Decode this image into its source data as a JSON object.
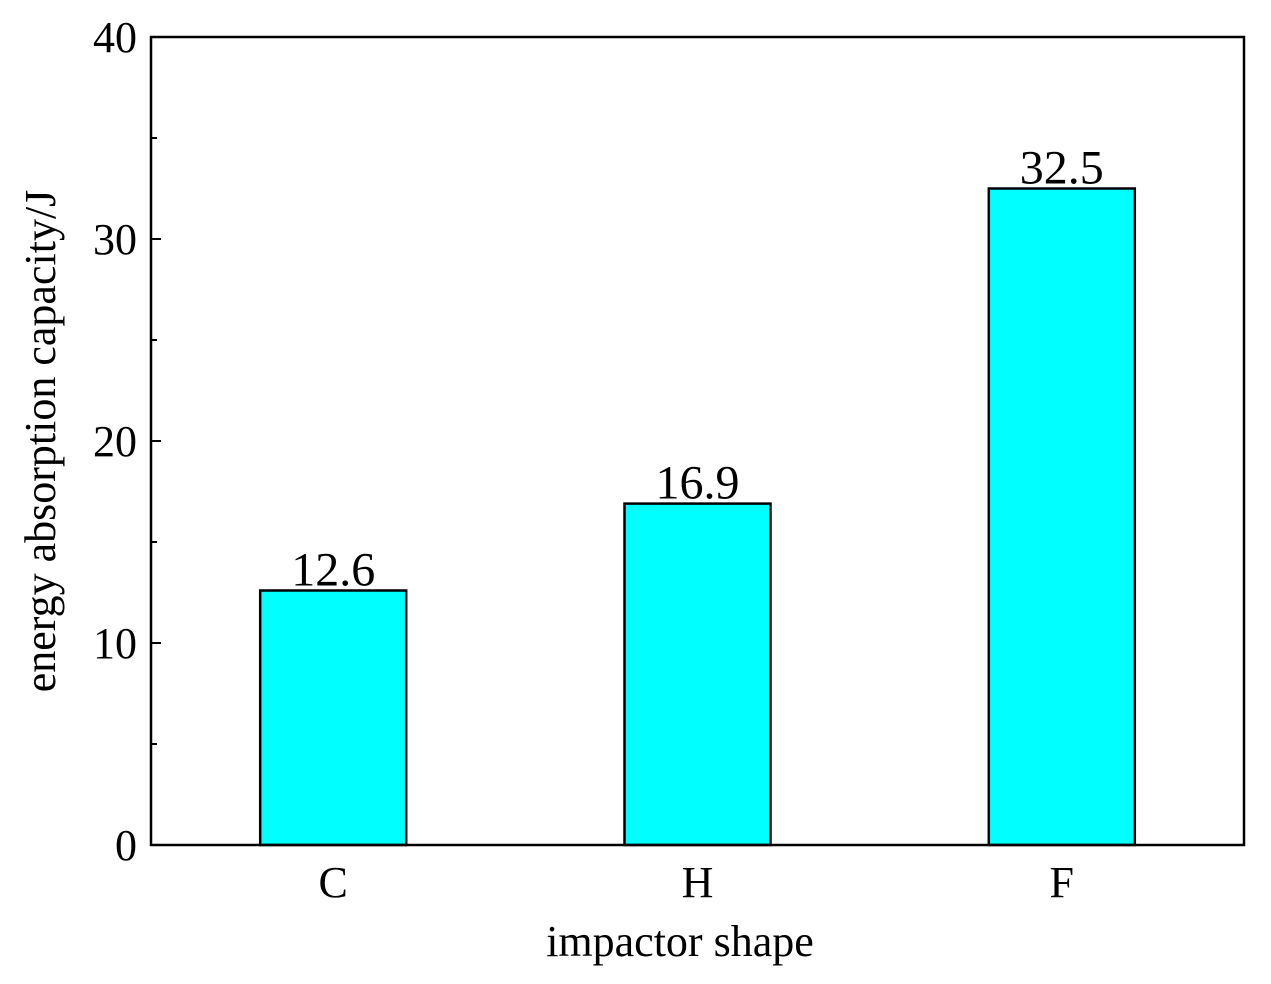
{
  "chart_data": {
    "type": "bar",
    "categories": [
      "C",
      "H",
      "F"
    ],
    "values": [
      12.6,
      16.9,
      32.5
    ],
    "data_labels": [
      "12.6",
      "16.9",
      "32.5"
    ],
    "xlabel": "impactor shape",
    "ylabel": "energy absorption capacity/J",
    "ylim": [
      0,
      40
    ],
    "yticks": [
      0,
      10,
      20,
      30,
      40
    ],
    "yticks_minor": [
      5,
      15,
      25,
      35
    ],
    "grid": false,
    "legend": "none",
    "colors": {
      "bar_fill": "#00ffff",
      "bar_stroke": "#000000",
      "axis": "#000000",
      "text": "#000000"
    }
  }
}
